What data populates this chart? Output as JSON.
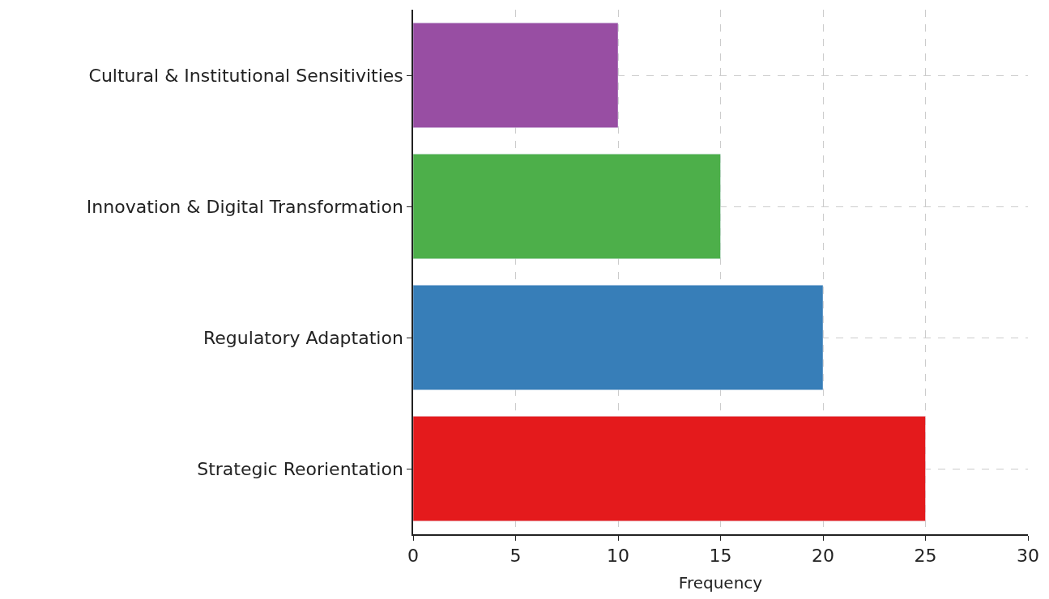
{
  "chart_data": {
    "type": "bar",
    "orientation": "horizontal",
    "xlabel": "Frequency",
    "categories": [
      "Cultural & Institutional Sensitivities",
      "Innovation & Digital Transformation",
      "Regulatory Adaptation",
      "Strategic Reorientation"
    ],
    "values": [
      10,
      15,
      20,
      25
    ],
    "colors": [
      "#984ea3",
      "#4daf4a",
      "#377eb8",
      "#e41a1c"
    ],
    "xlim": [
      0,
      30
    ],
    "xticks": [
      0,
      5,
      10,
      15,
      20,
      25,
      30
    ],
    "grid": true
  }
}
